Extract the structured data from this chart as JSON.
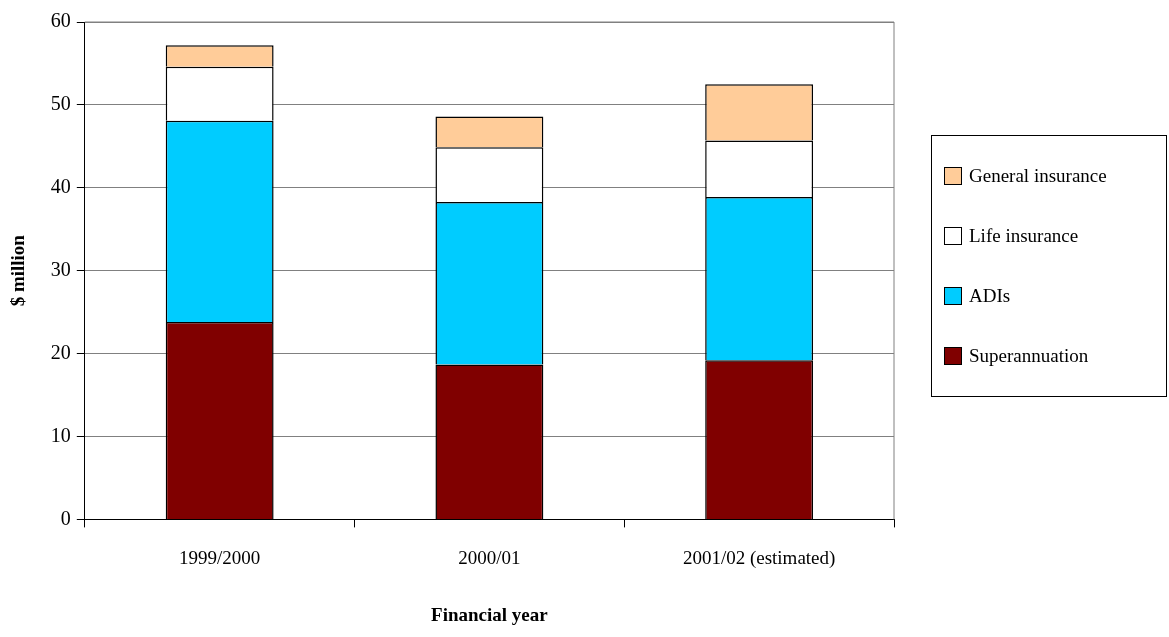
{
  "chart_data": {
    "type": "bar",
    "stacked": true,
    "xlabel": "Financial year",
    "ylabel": "$ million",
    "categories": [
      "1999/2000",
      "2000/01",
      "2001/02 (estimated)"
    ],
    "series": [
      {
        "name": "Superannuation",
        "color": "#800000",
        "values": [
          23.8,
          18.7,
          19.2
        ]
      },
      {
        "name": "ADIs",
        "color": "#00ccff",
        "values": [
          24.3,
          19.6,
          19.7
        ]
      },
      {
        "name": "Life insurance",
        "color": "#ffffff",
        "values": [
          6.5,
          6.6,
          6.8
        ]
      },
      {
        "name": "General insurance",
        "color": "#ffcc99",
        "values": [
          2.6,
          3.7,
          6.8
        ]
      }
    ],
    "ylim": [
      0,
      60
    ],
    "yticks": [
      0,
      10,
      20,
      30,
      40,
      50,
      60
    ],
    "grid": "y",
    "legend": "right"
  }
}
